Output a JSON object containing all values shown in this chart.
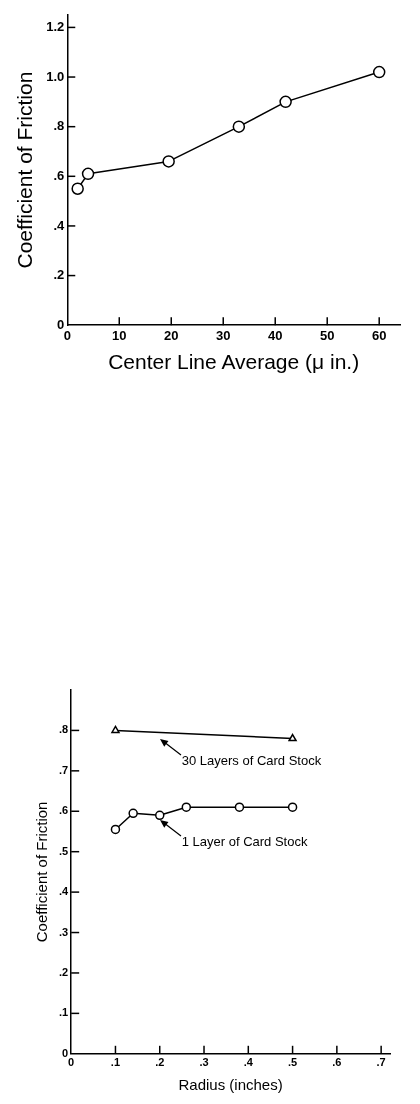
{
  "chart_data": [
    {
      "type": "line",
      "xlabel": "Center Line Average (μ in.)",
      "ylabel": "Coefficient of Friction",
      "x": [
        2,
        4,
        19.5,
        33,
        42,
        60
      ],
      "series": [
        {
          "color": "#000000",
          "values": [
            0.55,
            0.61,
            0.66,
            0.8,
            0.9,
            1.02
          ]
        }
      ],
      "xlim": [
        0,
        64
      ],
      "xticks": [
        0,
        10,
        20,
        30,
        40,
        50,
        60
      ],
      "ylim": [
        0,
        1.25
      ],
      "yticks": [
        0,
        {
          "value": 0.2,
          "label": ".2"
        },
        {
          "value": 0.4,
          "label": ".4"
        },
        {
          "value": 0.6,
          "label": ".6"
        },
        {
          "value": 0.8,
          "label": ".8"
        },
        {
          "value": 1.0,
          "label": "1.0"
        },
        {
          "value": 1.2,
          "label": "1.2"
        }
      ],
      "grid": false,
      "marker": "circle"
    },
    {
      "type": "line",
      "xlabel": "Radius (inches)",
      "ylabel": "Coefficient of Friction",
      "series": [
        {
          "color": "#000000",
          "marker": "triangle",
          "x": [
            0.1,
            0.5
          ],
          "values": [
            0.8,
            0.78
          ]
        },
        {
          "color": "#000000",
          "marker": "circle",
          "x": [
            0.1,
            0.14,
            0.2,
            0.26,
            0.38,
            0.5
          ],
          "values": [
            0.555,
            0.595,
            0.59,
            0.61,
            0.61,
            0.61
          ]
        }
      ],
      "annotations": [
        {
          "text": "30 Layers of Card Stock",
          "x": 0.2,
          "y": 0.79
        },
        {
          "text": "1 Layer of Card Stock",
          "x": 0.2,
          "y": 0.59
        }
      ],
      "xlim": [
        0,
        0.72
      ],
      "xticks": [
        0,
        {
          "value": 0.1,
          "label": ".1"
        },
        {
          "value": 0.2,
          "label": ".2"
        },
        {
          "value": 0.3,
          "label": ".3"
        },
        {
          "value": 0.4,
          "label": ".4"
        },
        {
          "value": 0.5,
          "label": ".5"
        },
        {
          "value": 0.6,
          "label": ".6"
        },
        {
          "value": 0.7,
          "label": ".7"
        }
      ],
      "ylim": [
        0,
        0.9
      ],
      "yticks": [
        0,
        {
          "value": 0.1,
          "label": ".1"
        },
        {
          "value": 0.2,
          "label": ".2"
        },
        {
          "value": 0.3,
          "label": ".3"
        },
        {
          "value": 0.4,
          "label": ".4"
        },
        {
          "value": 0.5,
          "label": ".5"
        },
        {
          "value": 0.6,
          "label": ".6"
        },
        {
          "value": 0.7,
          "label": ".7"
        },
        {
          "value": 0.8,
          "label": ".8"
        }
      ],
      "grid": false,
      "legend": false
    }
  ]
}
